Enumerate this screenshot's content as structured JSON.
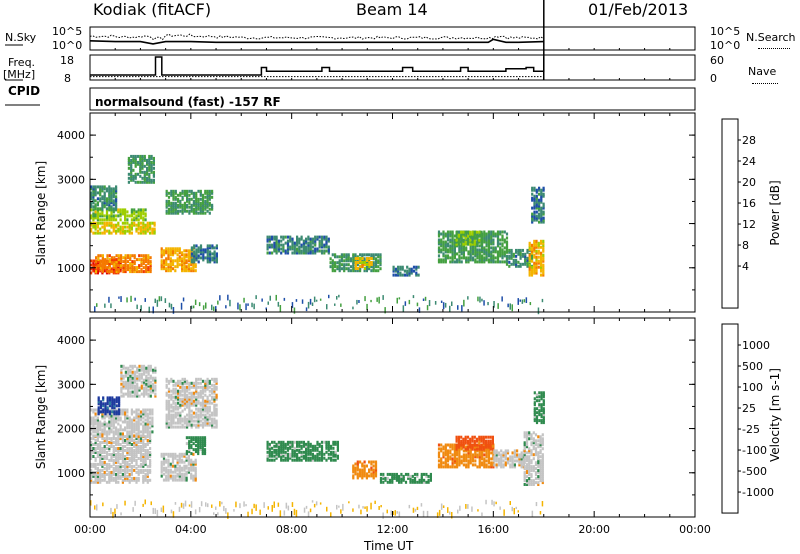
{
  "header": {
    "station": "Kodiak (fitACF)",
    "beam": "Beam 14",
    "date": "01/Feb/2013"
  },
  "strip_labels": {
    "nsky": "N.Sky",
    "nsearch": "N.Search",
    "freq_l1": "Freq.",
    "freq_l2": "[MHz]",
    "nave": "Nave",
    "cpid": "CPID",
    "cpid_value": "normalsound (fast) -157 RF",
    "noise_left_top": "10^5",
    "noise_left_bot": "10^0",
    "noise_right_top": "10^5",
    "noise_right_bot": "10^0",
    "freq_top": "18",
    "freq_bot": "8",
    "nave_top": "60",
    "nave_bot": "0"
  },
  "chart_data": [
    {
      "type": "line",
      "title": "",
      "series": [
        {
          "name": "N.Sky",
          "style": "solid"
        },
        {
          "name": "N.Search",
          "style": "dotted"
        }
      ],
      "x": [
        0,
        1,
        2,
        2.5,
        3,
        4,
        5,
        6,
        8,
        10,
        12,
        14,
        15.8,
        16,
        16.5,
        17,
        18
      ],
      "sky_level": [
        2.4,
        2.2,
        2.2,
        1.6,
        2.2,
        2.2,
        2.0,
        2.0,
        2.0,
        2.0,
        2.0,
        2.0,
        2.0,
        2.8,
        2.0,
        2.0,
        2.2
      ],
      "search_level": [
        3.6,
        3.4,
        3.6,
        3.0,
        3.8,
        3.6,
        3.4,
        3.2,
        3.2,
        3.2,
        3.2,
        3.2,
        3.2,
        3.6,
        3.2,
        3.2,
        3.4
      ]
    },
    {
      "type": "line",
      "series": [
        {
          "name": "Freq.",
          "style": "solid",
          "unit": "MHz"
        },
        {
          "name": "Nave",
          "style": "dotted"
        }
      ],
      "freq_steps": [
        [
          0,
          10
        ],
        [
          2.6,
          17.2
        ],
        [
          2.85,
          10
        ],
        [
          6.8,
          13
        ],
        [
          7.0,
          11.5
        ],
        [
          9.2,
          13
        ],
        [
          9.5,
          11.5
        ],
        [
          11.5,
          11.5
        ],
        [
          12.4,
          13
        ],
        [
          12.8,
          11.5
        ],
        [
          14.7,
          13
        ],
        [
          15.0,
          11.5
        ],
        [
          16.5,
          12.5
        ],
        [
          17.3,
          13
        ],
        [
          17.6,
          11.5
        ],
        [
          18,
          11.5
        ]
      ],
      "nave_level": 8,
      "yrange_left": [
        8,
        18
      ],
      "yrange_right": [
        0,
        60
      ]
    },
    {
      "type": "heatmap",
      "name": "power",
      "ylabel": "Slant Range [km]",
      "colorbar_label": "Power [dB]",
      "colorbar_ticks": [
        "28",
        "24",
        "20",
        "16",
        "12",
        "8",
        "4"
      ],
      "colorbar_colors": [
        "#dd0000",
        "#f23a00",
        "#f47a00",
        "#f4b400",
        "#9ece00",
        "#44a040",
        "#3c8a72",
        "#1e4ea8",
        "#0a1ae6"
      ],
      "x_range": [
        0,
        24
      ],
      "y_range": [
        0,
        4500
      ],
      "y_ticks": [
        "4000",
        "3000",
        "2000",
        "1000"
      ],
      "blobs": [
        {
          "x": [
            0.0,
            1.2
          ],
          "y": [
            850,
            1150
          ],
          "v": 27
        },
        {
          "x": [
            0.2,
            2.4
          ],
          "y": [
            880,
            1250
          ],
          "v": 22
        },
        {
          "x": [
            0.0,
            2.6
          ],
          "y": [
            1750,
            2000
          ],
          "v": 17
        },
        {
          "x": [
            0.0,
            2.2
          ],
          "y": [
            2050,
            2300
          ],
          "v": 14
        },
        {
          "x": [
            0.0,
            1.0
          ],
          "y": [
            2300,
            2800
          ],
          "v": 8
        },
        {
          "x": [
            1.5,
            2.5
          ],
          "y": [
            2900,
            3500
          ],
          "v": 9
        },
        {
          "x": [
            2.8,
            4.2
          ],
          "y": [
            900,
            1400
          ],
          "v": 20
        },
        {
          "x": [
            3.0,
            4.8
          ],
          "y": [
            2200,
            2700
          ],
          "v": 10
        },
        {
          "x": [
            4.0,
            5.0
          ],
          "y": [
            1100,
            1500
          ],
          "v": 6
        },
        {
          "x": [
            7.0,
            9.5
          ],
          "y": [
            1300,
            1700
          ],
          "v": 7
        },
        {
          "x": [
            9.5,
            11.5
          ],
          "y": [
            900,
            1300
          ],
          "v": 9
        },
        {
          "x": [
            10.5,
            11.2
          ],
          "y": [
            950,
            1200
          ],
          "v": 18
        },
        {
          "x": [
            12.0,
            13.0
          ],
          "y": [
            800,
            1000
          ],
          "v": 6
        },
        {
          "x": [
            13.8,
            16.5
          ],
          "y": [
            1100,
            1800
          ],
          "v": 10
        },
        {
          "x": [
            14.5,
            15.5
          ],
          "y": [
            1500,
            1800
          ],
          "v": 12
        },
        {
          "x": [
            16.5,
            17.5
          ],
          "y": [
            1000,
            1400
          ],
          "v": 8
        },
        {
          "x": [
            17.4,
            18.0
          ],
          "y": [
            800,
            1600
          ],
          "v": 19
        },
        {
          "x": [
            17.5,
            18.0
          ],
          "y": [
            2000,
            2800
          ],
          "v": 7
        }
      ]
    },
    {
      "type": "heatmap",
      "name": "velocity",
      "xlabel": "Time UT",
      "ylabel": "Slant Range [km]",
      "colorbar_label": "Velocity [m s-1]",
      "colorbar_ticks": [
        "1000",
        "500",
        "100",
        "25",
        "-25",
        "-100",
        "-500",
        "-1000"
      ],
      "colorbar_colors": [
        "#1e3a9e",
        "#2a7aa0",
        "#2f8a4e",
        "#6cc236",
        "#c4c4c4",
        "#f4b400",
        "#f08a10",
        "#f05010",
        "#e81010"
      ],
      "x_range": [
        0,
        24
      ],
      "y_range": [
        0,
        4500
      ],
      "x_ticks": [
        "00:00",
        "04:00",
        "08:00",
        "12:00",
        "16:00",
        "20:00",
        "00:00"
      ],
      "y_ticks": [
        "4000",
        "3000",
        "2000",
        "1000"
      ],
      "blobs": [
        {
          "x": [
            0.0,
            2.4
          ],
          "y": [
            750,
            1800
          ],
          "v": 0
        },
        {
          "x": [
            0.0,
            2.5
          ],
          "y": [
            1800,
            2400
          ],
          "v": 0
        },
        {
          "x": [
            0.3,
            1.2
          ],
          "y": [
            2300,
            2700
          ],
          "v": 1000
        },
        {
          "x": [
            1.2,
            2.6
          ],
          "y": [
            2700,
            3400
          ],
          "v": 0
        },
        {
          "x": [
            2.8,
            4.2
          ],
          "y": [
            800,
            1400
          ],
          "v": 0
        },
        {
          "x": [
            3.0,
            5.0
          ],
          "y": [
            2000,
            3100
          ],
          "v": 0
        },
        {
          "x": [
            3.8,
            4.6
          ],
          "y": [
            1400,
            1800
          ],
          "v": 150
        },
        {
          "x": [
            7.0,
            9.8
          ],
          "y": [
            1250,
            1700
          ],
          "v": 150
        },
        {
          "x": [
            10.4,
            11.3
          ],
          "y": [
            850,
            1250
          ],
          "v": -400
        },
        {
          "x": [
            11.5,
            13.5
          ],
          "y": [
            750,
            950
          ],
          "v": 150
        },
        {
          "x": [
            13.8,
            16.0
          ],
          "y": [
            1100,
            1600
          ],
          "v": -400
        },
        {
          "x": [
            14.5,
            16.0
          ],
          "y": [
            1500,
            1800
          ],
          "v": -600
        },
        {
          "x": [
            16.0,
            17.2
          ],
          "y": [
            1100,
            1500
          ],
          "v": 0
        },
        {
          "x": [
            17.2,
            18.0
          ],
          "y": [
            700,
            1900
          ],
          "v": 0
        },
        {
          "x": [
            17.6,
            18.0
          ],
          "y": [
            2100,
            2800
          ],
          "v": 150
        }
      ]
    }
  ]
}
